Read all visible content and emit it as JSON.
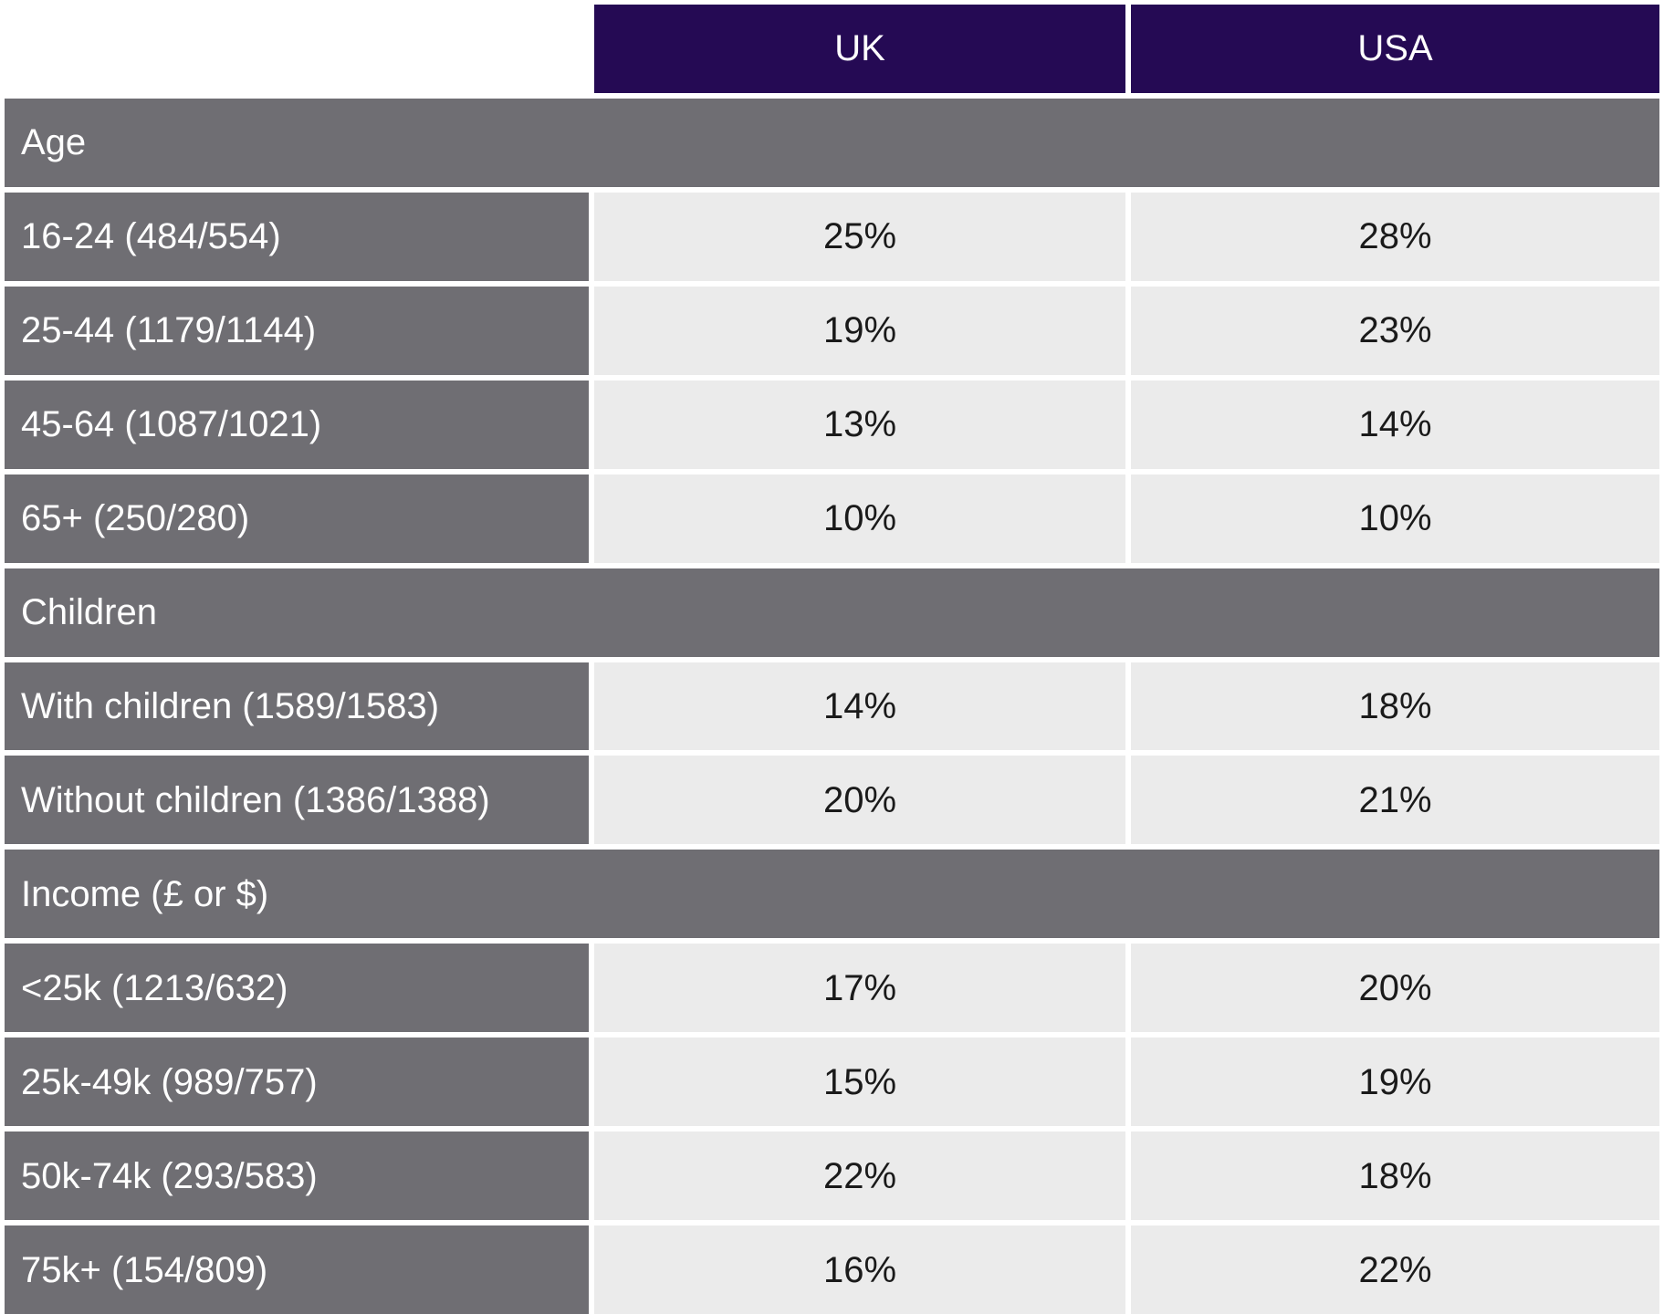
{
  "table": {
    "columns": [
      "UK",
      "USA"
    ],
    "sections": [
      {
        "title": "Age",
        "rows": [
          {
            "label": "16-24 (484/554)",
            "uk": "25%",
            "usa": "28%"
          },
          {
            "label": "25-44 (1179/1144)",
            "uk": "19%",
            "usa": "23%"
          },
          {
            "label": "45-64 (1087/1021)",
            "uk": "13%",
            "usa": "14%"
          },
          {
            "label": "65+ (250/280)",
            "uk": "10%",
            "usa": "10%"
          }
        ]
      },
      {
        "title": "Children",
        "rows": [
          {
            "label": "With children (1589/1583)",
            "uk": "14%",
            "usa": "18%"
          },
          {
            "label": "Without children (1386/1388)",
            "uk": "20%",
            "usa": "21%"
          }
        ]
      },
      {
        "title": "Income (£ or $)",
        "rows": [
          {
            "label": "<25k (1213/632)",
            "uk": "17%",
            "usa": "20%"
          },
          {
            "label": "25k-49k (989/757)",
            "uk": "15%",
            "usa": "19%"
          },
          {
            "label": "50k-74k (293/583)",
            "uk": "22%",
            "usa": "18%"
          },
          {
            "label": "75k+ (154/809)",
            "uk": "16%",
            "usa": "22%"
          }
        ]
      }
    ],
    "colors": {
      "header_background": "#250a54",
      "section_background": "#6f6e73",
      "label_background": "#6f6e73",
      "value_background": "#ebebeb",
      "header_text": "#ffffff",
      "label_text": "#ffffff",
      "value_text": "#1a1a1a",
      "gap": "#ffffff"
    }
  },
  "chart_data": {
    "type": "table",
    "title": "",
    "columns": [
      "",
      "UK",
      "USA"
    ],
    "groups": [
      {
        "group": "Age",
        "rows": [
          {
            "label": "16-24 (484/554)",
            "uk_pct": 25,
            "usa_pct": 28
          },
          {
            "label": "25-44 (1179/1144)",
            "uk_pct": 19,
            "usa_pct": 23
          },
          {
            "label": "45-64 (1087/1021)",
            "uk_pct": 13,
            "usa_pct": 14
          },
          {
            "label": "65+ (250/280)",
            "uk_pct": 10,
            "usa_pct": 10
          }
        ]
      },
      {
        "group": "Children",
        "rows": [
          {
            "label": "With children (1589/1583)",
            "uk_pct": 14,
            "usa_pct": 18
          },
          {
            "label": "Without children (1386/1388)",
            "uk_pct": 20,
            "usa_pct": 21
          }
        ]
      },
      {
        "group": "Income (£ or $)",
        "rows": [
          {
            "label": "<25k (1213/632)",
            "uk_pct": 17,
            "usa_pct": 20
          },
          {
            "label": "25k-49k (989/757)",
            "uk_pct": 15,
            "usa_pct": 19
          },
          {
            "label": "50k-74k (293/583)",
            "uk_pct": 22,
            "usa_pct": 18
          },
          {
            "label": "75k+ (154/809)",
            "uk_pct": 16,
            "usa_pct": 22
          }
        ]
      }
    ]
  }
}
